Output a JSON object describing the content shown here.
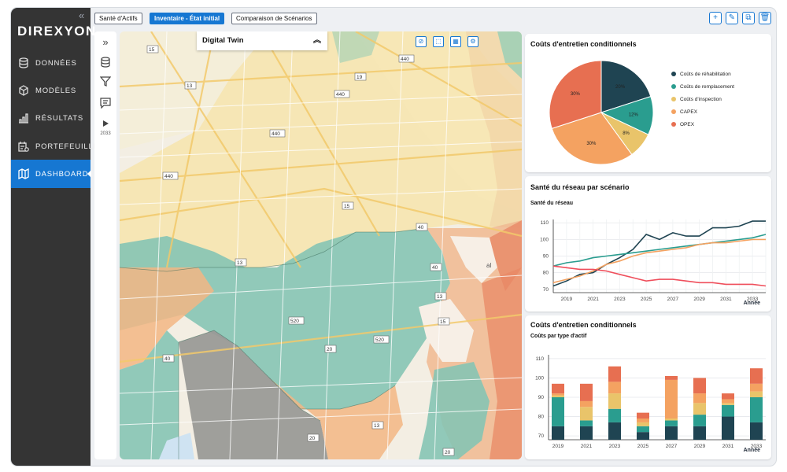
{
  "app": {
    "logo": "DIREXYON",
    "collapse": "«"
  },
  "nav": [
    {
      "label": "DONNÉES",
      "icon": "database-icon"
    },
    {
      "label": "MODÈLES",
      "icon": "cube-icon"
    },
    {
      "label": "RÉSULTATS",
      "icon": "bar-chart-icon"
    },
    {
      "label": "PORTEFEUILLE",
      "icon": "portfolio-icon"
    },
    {
      "label": "DASHBOARD",
      "icon": "map-icon",
      "active": true
    }
  ],
  "tabs": [
    {
      "label": "Santé d'Actifs"
    },
    {
      "label": "Inventaire - État initial",
      "active": true
    },
    {
      "label": "Comparaison de Scénarios"
    }
  ],
  "top_actions": [
    {
      "icon": "plus-icon",
      "glyph": "+"
    },
    {
      "icon": "pencil-icon",
      "glyph": "✎"
    },
    {
      "icon": "copy-icon",
      "glyph": "⧉"
    },
    {
      "icon": "trash-icon",
      "glyph": "🗑"
    }
  ],
  "tools": {
    "expand": "»",
    "year": "2033"
  },
  "map": {
    "panel_title": "Digital Twin",
    "panel_toggle": "︽",
    "controls": [
      {
        "icon": "compass-icon",
        "glyph": "⊘"
      },
      {
        "icon": "select-area-icon",
        "glyph": "⬚"
      },
      {
        "icon": "grid-icon",
        "glyph": "▦"
      },
      {
        "icon": "settings-icon",
        "glyph": "⚙"
      }
    ],
    "road_labels": [
      "15",
      "440",
      "19",
      "13",
      "440",
      "440",
      "440",
      "15",
      "40",
      "13",
      "40",
      "13",
      "15",
      "520",
      "520",
      "20",
      "40",
      "20",
      "13",
      "20",
      "15",
      "440",
      "al"
    ]
  },
  "pie_card": {
    "title": "Coûts d'entretien conditionnels",
    "chart_data": {
      "type": "pie",
      "slices": [
        {
          "label": "Coûts de réhabilitation",
          "value": 20,
          "color": "#1f4452"
        },
        {
          "label": "Coûts de remplacement",
          "value": 12,
          "color": "#2a9d8f"
        },
        {
          "label": "Coûts d'inspection",
          "value": 8,
          "color": "#e9c46a"
        },
        {
          "label": "CAPEX",
          "value": 30,
          "color": "#f4a261"
        },
        {
          "label": "OPEX",
          "value": 30,
          "color": "#e76f51"
        }
      ],
      "slice_labels": [
        "20%",
        "12%",
        "8%",
        "30%",
        "30%"
      ]
    }
  },
  "line_card": {
    "title": "Santé du réseau par scénario",
    "chart_data": {
      "type": "line",
      "ylabel": "Santé du réseau",
      "xlabel": "Année",
      "ylim": [
        68,
        112
      ],
      "yticks": [
        70,
        80,
        90,
        100,
        110
      ],
      "xticks": [
        2019,
        2021,
        2023,
        2025,
        2027,
        2029,
        2031,
        2033
      ],
      "x": [
        2018,
        2019,
        2020,
        2021,
        2022,
        2023,
        2024,
        2025,
        2026,
        2027,
        2028,
        2029,
        2030,
        2031,
        2032,
        2033,
        2034
      ],
      "series": [
        {
          "color": "#1f4452",
          "values": [
            72,
            75,
            79,
            80,
            85,
            89,
            94,
            103,
            100,
            104,
            102,
            102,
            107,
            107,
            108,
            111,
            111
          ]
        },
        {
          "color": "#2a9d8f",
          "values": [
            84,
            86,
            87,
            89,
            90,
            91,
            92,
            93,
            94,
            95,
            96,
            97,
            98,
            99,
            100,
            101,
            103
          ]
        },
        {
          "color": "#f4a261",
          "values": [
            74,
            76,
            78,
            81,
            85,
            87,
            90,
            92,
            93,
            94,
            95,
            97,
            98,
            98,
            99,
            100,
            100
          ]
        },
        {
          "color": "#ef4f5c",
          "values": [
            84,
            83,
            82,
            82,
            81,
            79,
            77,
            75,
            76,
            76,
            75,
            74,
            74,
            73,
            73,
            73,
            72
          ]
        }
      ]
    }
  },
  "bar_card": {
    "title": "Coûts d'entretien conditionnels",
    "chart_data": {
      "type": "bar",
      "ylabel": "Coûts par type d'actif",
      "xlabel": "Année",
      "ylim": [
        68,
        112
      ],
      "yticks": [
        70,
        80,
        90,
        100,
        110
      ],
      "categories": [
        "2019",
        "2020",
        "2021",
        "2022",
        "2023",
        "2024",
        "2025",
        "2026",
        "2027",
        "2028",
        "2029",
        "2030",
        "2031",
        "2032",
        "2033"
      ],
      "xticks": [
        "2019",
        "2021",
        "2023",
        "2025",
        "2027",
        "2029",
        "2031",
        "2033"
      ],
      "series": [
        {
          "color": "#1f4452",
          "values": [
            75,
            null,
            75,
            null,
            77,
            null,
            72,
            null,
            75,
            null,
            75,
            null,
            80,
            null,
            77
          ]
        },
        {
          "color": "#2a9d8f",
          "values": [
            90,
            null,
            78,
            null,
            84,
            null,
            75,
            null,
            78,
            null,
            81,
            null,
            86,
            null,
            90
          ]
        },
        {
          "color": "#e9c46a",
          "values": [
            91,
            null,
            85,
            null,
            92,
            null,
            77,
            null,
            79,
            null,
            87,
            null,
            87,
            null,
            93
          ]
        },
        {
          "color": "#f4a261",
          "values": [
            92,
            null,
            88,
            null,
            98,
            null,
            79,
            null,
            99,
            null,
            92,
            null,
            89,
            null,
            97
          ]
        },
        {
          "color": "#e76f51",
          "values": [
            97,
            null,
            97,
            null,
            106,
            null,
            82,
            null,
            101,
            null,
            100,
            null,
            92,
            null,
            105
          ]
        }
      ]
    }
  }
}
